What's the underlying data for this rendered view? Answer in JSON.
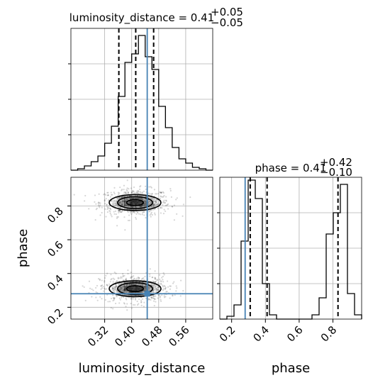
{
  "chart_data": {
    "type": "corner",
    "parameters": [
      "luminosity_distance",
      "phase"
    ],
    "truth": {
      "luminosity_distance": 0.446,
      "phase": 0.28
    },
    "colors": {
      "truth": "#4682b4",
      "hist": "#000000",
      "quantile": "#000000",
      "grid": "#b0b0b0"
    },
    "grid": true,
    "panels": {
      "luminosity_distance_hist": {
        "title_main": "luminosity_distance = 0.41",
        "title_sup": "+0.05",
        "title_sub": "−0.05",
        "xlim": [
          0.22,
          0.64
        ],
        "ylim": [
          0,
          1
        ],
        "quantiles": [
          0.362,
          0.412,
          0.465
        ],
        "bin_edges": [
          0.22,
          0.24,
          0.26,
          0.28,
          0.3,
          0.32,
          0.34,
          0.36,
          0.38,
          0.4,
          0.42,
          0.44,
          0.46,
          0.48,
          0.5,
          0.52,
          0.54,
          0.56,
          0.58,
          0.6,
          0.62,
          0.64
        ],
        "counts": [
          0.0,
          0.01,
          0.03,
          0.06,
          0.1,
          0.19,
          0.31,
          0.52,
          0.76,
          0.82,
          0.95,
          0.8,
          0.71,
          0.45,
          0.3,
          0.16,
          0.08,
          0.05,
          0.02,
          0.01,
          0.0
        ]
      },
      "phase_vs_luminosity_distance": {
        "xlim": [
          0.22,
          0.64
        ],
        "ylim": [
          0.13,
          0.97
        ],
        "x_ticks": [
          0.32,
          0.4,
          0.48,
          0.56
        ],
        "x_tick_labels": [
          "0.32",
          "0.40",
          "0.48",
          "0.56"
        ],
        "y_ticks": [
          0.2,
          0.4,
          0.6,
          0.8
        ],
        "y_tick_labels": [
          "0.2",
          "0.4",
          "0.6",
          "0.8"
        ],
        "xlabel": "luminosity_distance",
        "ylabel": "phase",
        "modes": [
          {
            "x": 0.41,
            "y": 0.82,
            "sx": 0.045,
            "sy": 0.035
          },
          {
            "x": 0.41,
            "y": 0.31,
            "sx": 0.045,
            "sy": 0.035
          }
        ],
        "contour_levels": [
          {
            "kx": 0.55,
            "ky": 0.5
          },
          {
            "kx": 1.15,
            "ky": 1.0
          },
          {
            "kx": 1.7,
            "ky": 1.35
          }
        ]
      },
      "phase_hist": {
        "title_main": "phase = 0.41",
        "title_sup": "+0.42",
        "title_sub": "−0.10",
        "xlim": [
          0.13,
          0.97
        ],
        "ylim": [
          0,
          1
        ],
        "quantiles": [
          0.31,
          0.41,
          0.83
        ],
        "x_ticks": [
          0.2,
          0.4,
          0.6,
          0.8
        ],
        "x_tick_labels": [
          "0.2",
          "0.4",
          "0.6",
          "0.8"
        ],
        "xlabel": "phase",
        "bin_edges": [
          0.13,
          0.172,
          0.214,
          0.256,
          0.298,
          0.34,
          0.382,
          0.424,
          0.466,
          0.508,
          0.55,
          0.592,
          0.634,
          0.676,
          0.718,
          0.76,
          0.802,
          0.844,
          0.886,
          0.928,
          0.97
        ],
        "counts": [
          0.0,
          0.02,
          0.1,
          0.55,
          0.98,
          0.85,
          0.25,
          0.03,
          0.0,
          0.0,
          0.0,
          0.0,
          0.0,
          0.03,
          0.15,
          0.6,
          0.75,
          0.95,
          0.18,
          0.03
        ]
      }
    }
  }
}
